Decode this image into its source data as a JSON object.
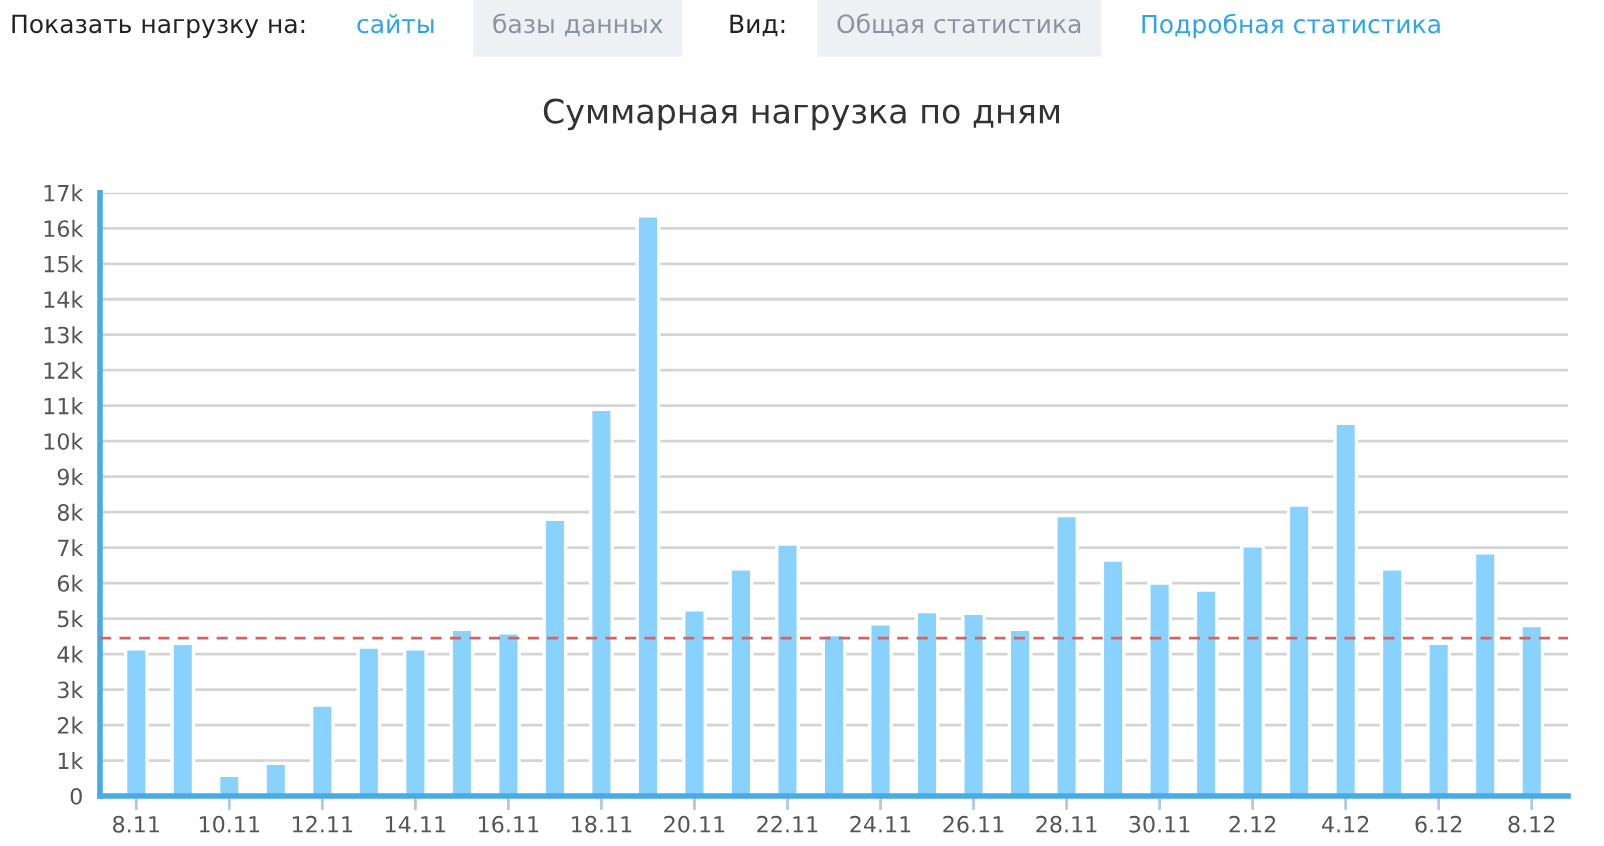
{
  "chart_data": {
    "type": "bar",
    "title": "Суммарная нагрузка по дням",
    "annotations": [
      "Показать нагрузку на:",
      "сайты",
      "базы данных",
      "Вид:",
      "Общая статистика",
      "Подробная статистика"
    ],
    "categories": [
      "8.11",
      null,
      "10.11",
      null,
      "12.11",
      null,
      "14.11",
      null,
      "16.11",
      null,
      "18.11",
      null,
      "20.11",
      null,
      "22.11",
      null,
      "24.11",
      null,
      "26.11",
      null,
      "28.11",
      null,
      "30.11",
      null,
      "2.12",
      null,
      "4.12",
      null,
      "6.12",
      null,
      "8.12"
    ],
    "values": [
      4150,
      4300,
      580,
      920,
      2560,
      4200,
      4150,
      4700,
      4600,
      7800,
      10900,
      16350,
      5250,
      6400,
      7100,
      4550,
      4850,
      5200,
      5150,
      4700,
      7900,
      6650,
      6000,
      5800,
      7050,
      8200,
      10500,
      6400,
      4300,
      6850,
      4800
    ],
    "color": "#8ad2fe",
    "ylim": [
      0,
      17000
    ],
    "yticks": [
      0,
      {
        "value": 1000,
        "label": "1k"
      },
      {
        "value": 2000,
        "label": "2k"
      },
      {
        "value": 3000,
        "label": "3k"
      },
      {
        "value": 4000,
        "label": "4k"
      },
      {
        "value": 5000,
        "label": "5k"
      },
      {
        "value": 6000,
        "label": "6k"
      },
      {
        "value": 7000,
        "label": "7k"
      },
      {
        "value": 8000,
        "label": "8k"
      },
      {
        "value": 9000,
        "label": "9k"
      },
      {
        "value": 10000,
        "label": "10k"
      },
      {
        "value": 11000,
        "label": "11k"
      },
      {
        "value": 12000,
        "label": "12k"
      },
      {
        "value": 13000,
        "label": "13k"
      },
      {
        "value": 14000,
        "label": "14k"
      },
      {
        "value": 15000,
        "label": "15k"
      },
      {
        "value": 16000,
        "label": "16k"
      },
      {
        "value": 17000,
        "label": "17k"
      }
    ],
    "ref_lines": [
      {
        "axis": "y",
        "value": 4450,
        "color": "#d9625f",
        "line_style": "dashed"
      }
    ],
    "grid": "y"
  }
}
